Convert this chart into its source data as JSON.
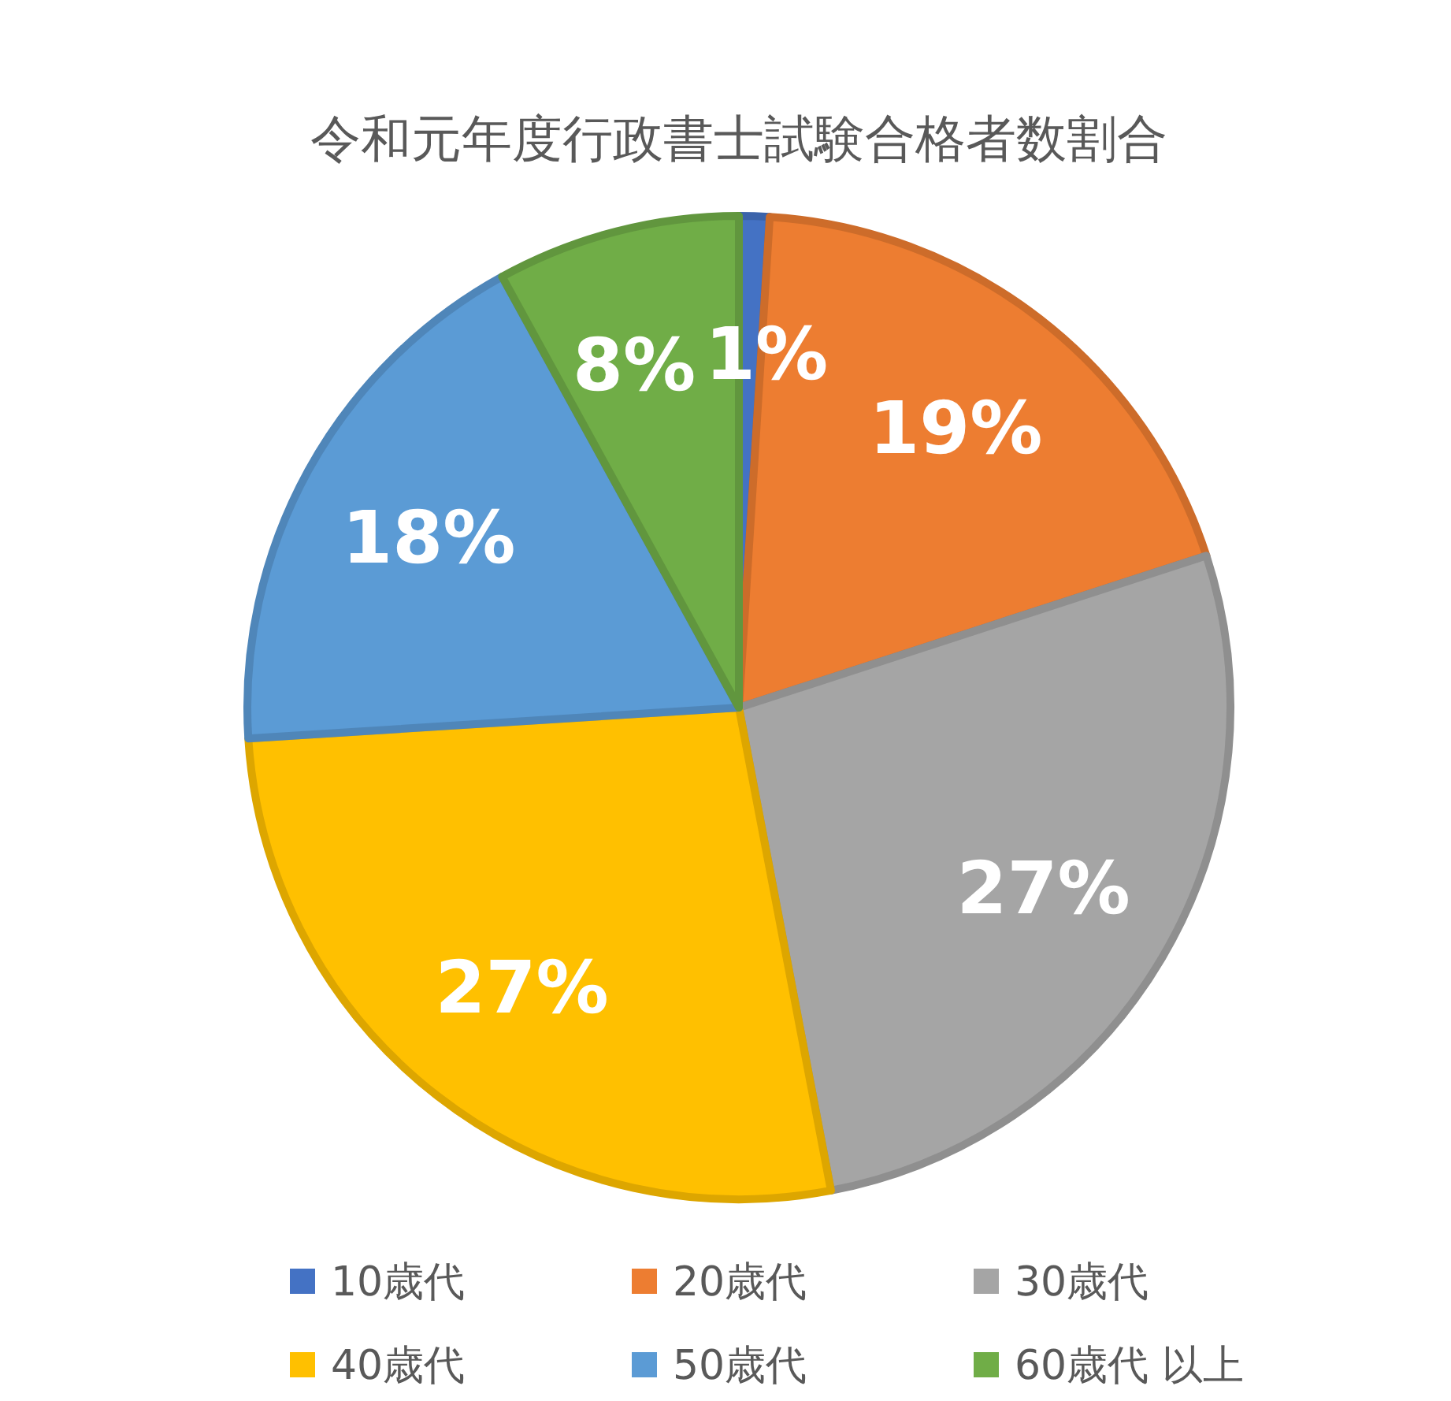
{
  "chart_data": {
    "type": "pie",
    "title": "令和元年度行政書士試験合格者数割合",
    "categories": [
      "10歳代",
      "20歳代",
      "30歳代",
      "40歳代",
      "50歳代",
      "60歳代 以上"
    ],
    "values": [
      1,
      19,
      27,
      27,
      18,
      8
    ],
    "colors": [
      "#4472c4",
      "#ed7d31",
      "#a5a5a5",
      "#ffc000",
      "#5b9bd5",
      "#70ad47"
    ],
    "value_labels": [
      "1%",
      "19%",
      "27%",
      "27%",
      "18%",
      "8%"
    ],
    "legend": "bottom"
  }
}
